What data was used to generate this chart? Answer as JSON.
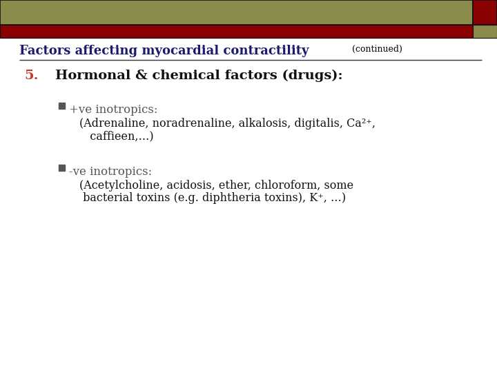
{
  "bg_color": "#ffffff",
  "header_bar1_color": "#8B8B4B",
  "header_bar2_color": "#8B0000",
  "title_main": "Factors affecting myocardial contractility",
  "title_continued": "(continued)",
  "title_color": "#1a1a6e",
  "title_continued_color": "#000000",
  "title_fontsize": 13,
  "title_continued_fontsize": 9,
  "number_text": "5.",
  "number_color": "#c0392b",
  "number_fontsize": 14,
  "heading_text": "Hormonal & chemical factors (drugs):",
  "heading_color": "#111111",
  "heading_fontsize": 14,
  "bullet_color": "#555555",
  "bullet1_label": "+ve inotropics:",
  "bullet1_sub_line1": "(Adrenaline, noradrenaline, alkalosis, digitalis, Ca²⁺,",
  "bullet1_sub_line2": "   caffieen,…)",
  "bullet2_label": "-ve inotropics:",
  "bullet2_sub_line1": "(Acetylcholine, acidosis, ether, chloroform, some",
  "bullet2_sub_line2": " bacterial toxins (e.g. diphtheria toxins), K⁺, …)",
  "bullet_label_fontsize": 12,
  "sub_fontsize": 11.5
}
